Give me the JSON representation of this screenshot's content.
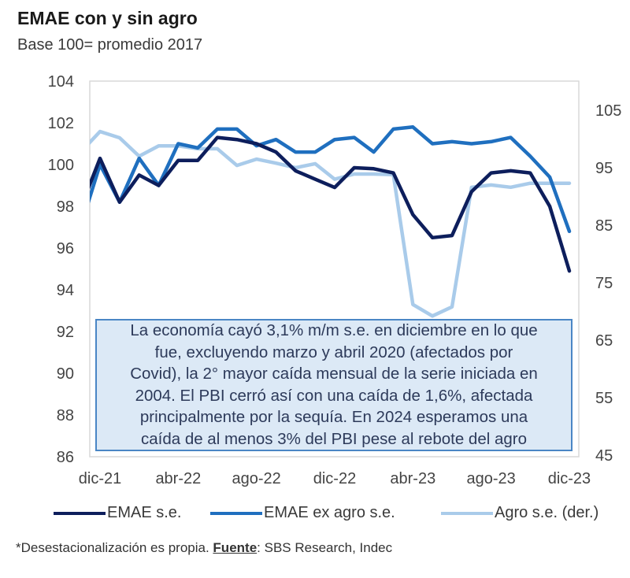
{
  "chart_data": {
    "type": "line",
    "title": "EMAE con y sin agro",
    "subtitle": "Base 100= promedio 2017",
    "x": [
      "nov-21",
      "dic-21",
      "ene-22",
      "feb-22",
      "mar-22",
      "abr-22",
      "may-22",
      "jun-22",
      "jul-22",
      "ago-22",
      "sep-22",
      "oct-22",
      "nov-22",
      "dic-22",
      "ene-23",
      "feb-23",
      "mar-23",
      "abr-23",
      "may-23",
      "jun-23",
      "jul-23",
      "ago-23",
      "sep-23",
      "oct-23",
      "nov-23",
      "dic-23"
    ],
    "x_tick_labels": [
      "dic-21",
      "abr-22",
      "ago-22",
      "dic-22",
      "abr-23",
      "ago-23",
      "dic-23"
    ],
    "y_left": {
      "ticks": [
        86,
        88,
        90,
        92,
        94,
        96,
        98,
        100,
        102,
        104
      ],
      "ylim": [
        86,
        104
      ]
    },
    "y_right": {
      "ticks": [
        45,
        55,
        65,
        75,
        85,
        95,
        105
      ],
      "ylim": [
        45,
        105
      ]
    },
    "grid": false,
    "legend_position": "bottom",
    "series": [
      {
        "name": "EMAE s.e.",
        "axis": "left",
        "color": "#0d1e5c",
        "values": [
          97.9,
          100.3,
          98.2,
          99.5,
          99.0,
          100.2,
          100.2,
          101.3,
          101.2,
          101.0,
          100.6,
          99.7,
          99.3,
          98.9,
          99.85,
          99.8,
          99.6,
          97.6,
          96.5,
          96.6,
          98.7,
          99.6,
          99.7,
          99.6,
          98.0,
          94.9
        ]
      },
      {
        "name": "EMAE ex agro s.e.",
        "axis": "left",
        "color": "#1f6fbf",
        "values": [
          97.0,
          100.0,
          98.2,
          100.3,
          99.0,
          101.0,
          100.8,
          101.7,
          101.7,
          100.9,
          101.2,
          100.6,
          100.6,
          101.2,
          101.3,
          100.6,
          101.7,
          101.8,
          101.0,
          101.1,
          101.0,
          101.1,
          101.3,
          100.4,
          99.4,
          96.8
        ]
      },
      {
        "name": "Agro s.e. (der.)",
        "axis": "right",
        "color": "#a9cbea",
        "values": [
          97.7,
          101.3,
          100.2,
          97.0,
          98.8,
          98.8,
          98.3,
          98.3,
          95.4,
          96.5,
          95.8,
          95.0,
          95.7,
          93.0,
          93.9,
          93.9,
          93.8,
          71.2,
          69.2,
          70.8,
          91.6,
          92.0,
          91.6,
          92.3,
          92.3,
          92.3
        ]
      }
    ],
    "annotation": "La economía cayó 3,1% m/m s.e. en diciembre en lo que fue, excluyendo marzo y abril 2020 (afectados por Covid), la 2° mayor caída mensual de la serie iniciada en 2004. El PBI cerró así con una caída de 1,6%, afectada principalmente por la sequía. En 2024 esperamos una caída de al menos 3% del PBI pese al rebote del agro"
  },
  "annotation_lines": [
    "La economía cayó 3,1% m/m s.e. en diciembre en lo que",
    "fue, excluyendo marzo y abril 2020 (afectados por",
    "Covid), la 2° mayor caída mensual de la serie iniciada en",
    "2004. El PBI cerró así con una caída de 1,6%, afectada",
    "principalmente por la sequía. En 2024 esperamos una",
    "caída de al menos 3% del PBI pese al rebote del agro"
  ],
  "footer": {
    "note": "*Desestacionalización es propia. ",
    "source_label": "Fuente",
    "source_text": ": SBS Research, Indec"
  }
}
